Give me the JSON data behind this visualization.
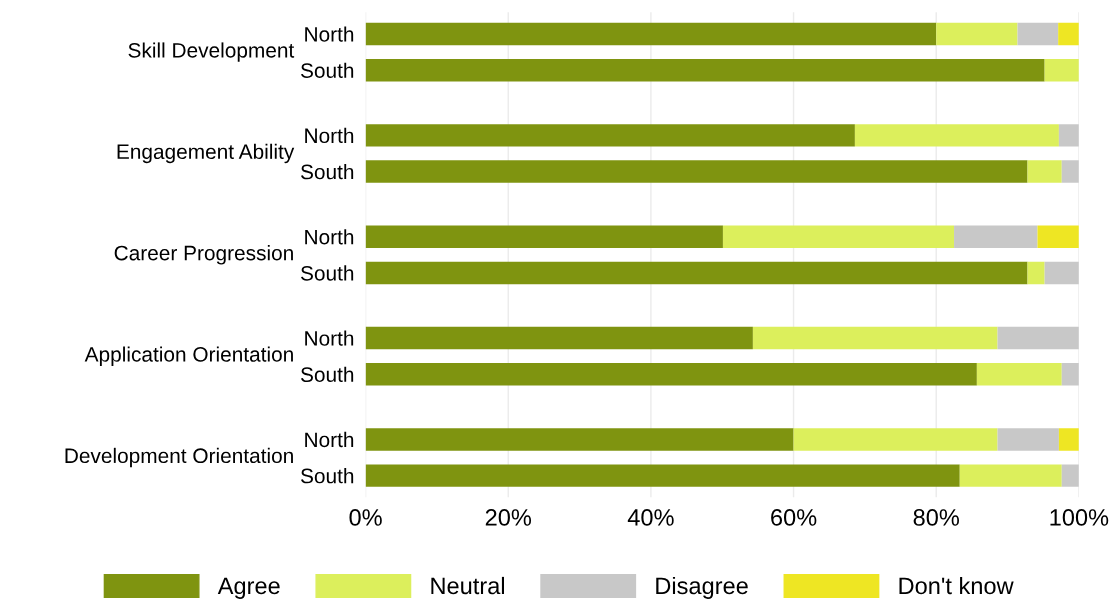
{
  "chart_data": {
    "type": "bar",
    "orientation": "horizontal",
    "stacked": true,
    "categories": [
      "North",
      "South",
      "North",
      "South",
      "North",
      "South",
      "North",
      "South",
      "North",
      "South"
    ],
    "annotations": [
      "Skill Development",
      "Engagement Ability",
      "Career Progression",
      "Application Orientation",
      "Development Orientation"
    ],
    "series": [
      {
        "name": "Agree",
        "color": "#7f9410",
        "values": [
          80,
          95.2,
          68.6,
          92.8,
          50.1,
          92.8,
          54.3,
          85.7,
          60,
          83.3
        ]
      },
      {
        "name": "Neutral",
        "color": "#dcef5c",
        "values": [
          11.4,
          4.8,
          28.6,
          4.8,
          32.4,
          2.4,
          34.3,
          11.9,
          28.6,
          14.3
        ]
      },
      {
        "name": "Disagree",
        "color": "#c8c8c8",
        "values": [
          5.7,
          0,
          2.8,
          2.4,
          11.7,
          4.8,
          11.4,
          2.4,
          8.6,
          2.4
        ]
      },
      {
        "name": "Don't know",
        "color": "#eee623",
        "values": [
          2.9,
          0,
          0,
          0,
          5.8,
          0,
          0,
          0,
          2.8,
          0
        ]
      }
    ],
    "xlim": [
      0,
      100
    ],
    "xticks": [
      {
        "value": 0,
        "label": "0%"
      },
      {
        "value": 20,
        "label": "20%"
      },
      {
        "value": 40,
        "label": "40%"
      },
      {
        "value": 60,
        "label": "60%"
      },
      {
        "value": 80,
        "label": "80%"
      },
      {
        "value": 100,
        "label": "100%"
      }
    ],
    "grid": "x",
    "legend": "bottom"
  }
}
